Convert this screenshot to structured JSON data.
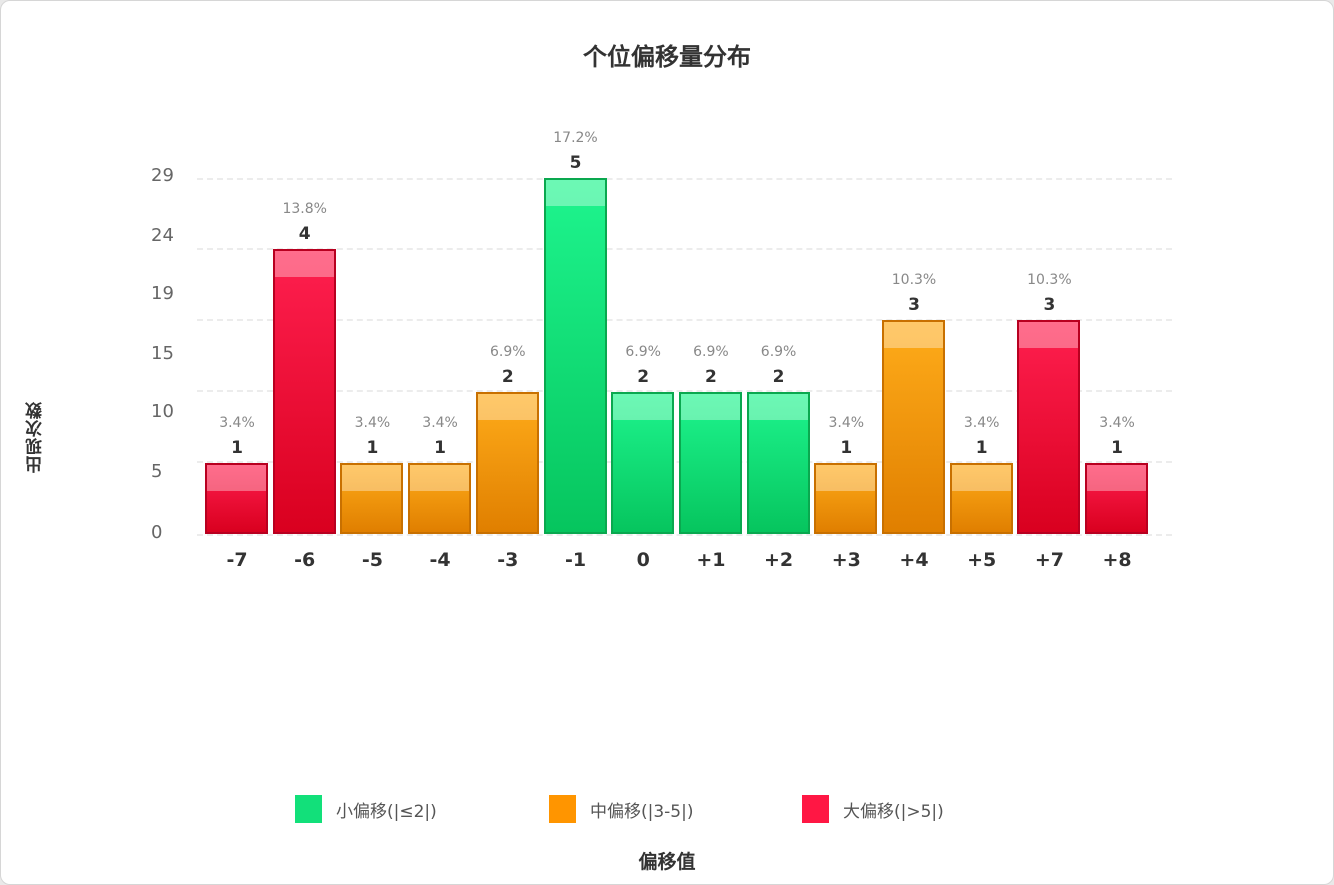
{
  "title": "个位偏移量分布",
  "y_axis_label": "出现次数",
  "x_axis_label": "偏移值",
  "colors": {
    "small": "#12e07a",
    "medium": "#ff9500",
    "large": "#ff1744"
  },
  "legend": [
    {
      "label": "小偏移(|≤2|)",
      "color": "#12e07a"
    },
    {
      "label": "中偏移(|3-5|)",
      "color": "#ff9500"
    },
    {
      "label": "大偏移(|>5|)",
      "color": "#ff1744"
    }
  ],
  "y_ticks": [
    "0",
    "5",
    "10",
    "15",
    "19",
    "24",
    "29"
  ],
  "chart_data": {
    "type": "bar",
    "title": "个位偏移量分布",
    "xlabel": "偏移值",
    "ylabel": "出现次数",
    "categories": [
      "-7",
      "-6",
      "-5",
      "-4",
      "-3",
      "-1",
      "0",
      "+1",
      "+2",
      "+3",
      "+4",
      "+5",
      "+7",
      "+8"
    ],
    "values": [
      1,
      4,
      1,
      1,
      2,
      5,
      2,
      2,
      2,
      1,
      3,
      1,
      3,
      1
    ],
    "percent_labels": [
      "3.4%",
      "13.8%",
      "3.4%",
      "3.4%",
      "6.9%",
      "17.2%",
      "6.9%",
      "6.9%",
      "6.9%",
      "3.4%",
      "10.3%",
      "3.4%",
      "10.3%",
      "3.4%"
    ],
    "groups": [
      "large",
      "large",
      "medium",
      "medium",
      "medium",
      "small",
      "small",
      "small",
      "small",
      "medium",
      "medium",
      "medium",
      "large",
      "large"
    ],
    "y_tick_labels": [
      "0",
      "5",
      "10",
      "15",
      "19",
      "24",
      "29"
    ],
    "ylim": [
      0,
      29
    ],
    "grid": true,
    "legend_position": "bottom",
    "legend": [
      "小偏移(|≤2|)",
      "中偏移(|3-5|)",
      "大偏移(|>5|)"
    ]
  }
}
